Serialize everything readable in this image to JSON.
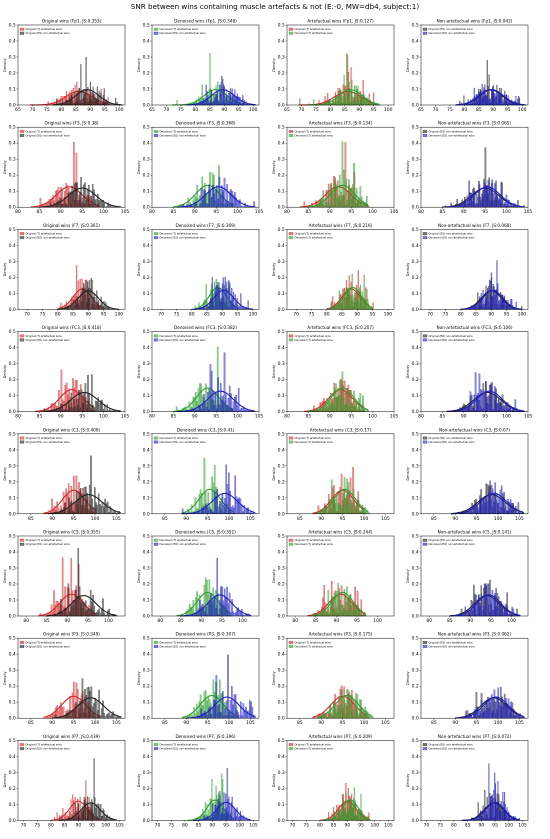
{
  "title": "SNR between wins containing muscle artefacts & not (E:-0, MW=db4, subject:1)",
  "colors": {
    "red": "#d62728",
    "black": "#222222",
    "green": "#2ca02c",
    "blue": "#1f1fbf"
  },
  "chart_data": {
    "type": "histogram-grid",
    "ylabel": "Density",
    "columns": [
      {
        "kind": "original",
        "legend": [
          "Original (T) artefactual wins",
          "Original (EO) non-artefactual wins"
        ],
        "colors": [
          "red",
          "black"
        ]
      },
      {
        "kind": "denoised",
        "legend": [
          "Denoised (T) artefactual wins",
          "Denoised (EO) non-artefactual wins"
        ],
        "colors": [
          "green",
          "blue"
        ]
      },
      {
        "kind": "artefactual",
        "legend": [
          "Original (T) artefactual wins",
          "Denoised (T) artefactual wins"
        ],
        "colors": [
          "red",
          "green"
        ]
      },
      {
        "kind": "nonartefactual",
        "legend": [
          "Original (EO) non-artefactual wins",
          "Denoised (EO) non-artefactual wins"
        ],
        "colors": [
          "black",
          "blue"
        ]
      }
    ],
    "rows": [
      {
        "channel": "Fp1",
        "xlim": [
          65,
          102
        ],
        "xticks": [
          65,
          70,
          75,
          80,
          85,
          90,
          95,
          100
        ],
        "ylim": [
          0,
          0.5
        ],
        "yticks": [
          0.0,
          0.1,
          0.2,
          0.3,
          0.4,
          0.5
        ],
        "titles": [
          "Original wins (Fp1, JS:0.353)",
          "Denoised wins (Fp1, JS:0.348)",
          "Artefactual wins (Fp1, JS:0.127)",
          "Non-artefactual wins (Fp1, JS:0.042)"
        ],
        "dists": {
          "T_orig": {
            "mu": 86,
            "sd": 4.5,
            "min": 69,
            "max": 96
          },
          "T_den": {
            "mu": 87,
            "sd": 4.0,
            "min": 72,
            "max": 97
          },
          "EO_orig": {
            "mu": 89,
            "sd": 4.0,
            "min": 77,
            "max": 101
          },
          "EO_den": {
            "mu": 89.5,
            "sd": 4.0,
            "min": 77,
            "max": 101
          }
        }
      },
      {
        "channel": "F3",
        "xlim": [
          80,
          105
        ],
        "xticks": [
          80,
          85,
          90,
          95,
          100,
          105
        ],
        "ylim": [
          0,
          0.5
        ],
        "yticks": [
          0.0,
          0.1,
          0.2,
          0.3,
          0.4,
          0.5
        ],
        "titles": [
          "Original wins (F3, JS:0.38)",
          "Denoised wins (F3, JS:0.368)",
          "Artefactual wins (F3, JS:0.134)",
          "Non-artefactual wins (F3, JS:0.065)"
        ],
        "dists": {
          "T_orig": {
            "mu": 92,
            "sd": 3.0,
            "min": 83,
            "max": 99
          },
          "T_den": {
            "mu": 93,
            "sd": 2.8,
            "min": 85,
            "max": 99
          },
          "EO_orig": {
            "mu": 95,
            "sd": 3.2,
            "min": 85,
            "max": 104
          },
          "EO_den": {
            "mu": 95.5,
            "sd": 3.0,
            "min": 86,
            "max": 104
          }
        }
      },
      {
        "channel": "F7",
        "xlim": [
          67,
          102
        ],
        "xticks": [
          70,
          75,
          80,
          85,
          90,
          95,
          100
        ],
        "ylim": [
          0,
          0.5
        ],
        "yticks": [
          0.0,
          0.1,
          0.2,
          0.3,
          0.4,
          0.5
        ],
        "titles": [
          "Original wins (F7, JS:0.361)",
          "Denoised wins (F7, JS:0.369)",
          "Artefactual wins (F7, JS:0.216)",
          "Non-artefactual wins (F7, JS:0.068)"
        ],
        "dists": {
          "T_orig": {
            "mu": 88,
            "sd": 3.0,
            "min": 80,
            "max": 95
          },
          "T_den": {
            "mu": 88.5,
            "sd": 2.8,
            "min": 81,
            "max": 95
          },
          "EO_orig": {
            "mu": 90,
            "sd": 3.3,
            "min": 80,
            "max": 100
          },
          "EO_den": {
            "mu": 90.5,
            "sd": 3.2,
            "min": 80,
            "max": 100
          }
        }
      },
      {
        "channel": "FC3",
        "xlim": [
          80,
          105
        ],
        "xticks": [
          80,
          85,
          90,
          95,
          100,
          105
        ],
        "ylim": [
          0,
          0.5
        ],
        "yticks": [
          0.0,
          0.1,
          0.2,
          0.3,
          0.4,
          0.5
        ],
        "titles": [
          "Original wins (FC3, JS:0.418)",
          "Denoised wins (FC3, JS:0.382)",
          "Artefactual wins (FC3, JS:0.207)",
          "Non-artefactual wins (FC3, JS:0.106)"
        ],
        "dists": {
          "T_orig": {
            "mu": 92.5,
            "sd": 2.8,
            "min": 84,
            "max": 98
          },
          "T_den": {
            "mu": 93,
            "sd": 2.6,
            "min": 85,
            "max": 99
          },
          "EO_orig": {
            "mu": 95.5,
            "sd": 3.2,
            "min": 86,
            "max": 104
          },
          "EO_den": {
            "mu": 96,
            "sd": 3.0,
            "min": 86,
            "max": 104
          }
        }
      },
      {
        "channel": "C3",
        "xlim": [
          82,
          107
        ],
        "xticks": [
          85,
          90,
          95,
          100,
          105
        ],
        "ylim": [
          0,
          0.5
        ],
        "yticks": [
          0.0,
          0.1,
          0.2,
          0.3,
          0.4,
          0.5
        ],
        "titles": [
          "Original wins (C3, JS:0.406)",
          "Denoised wins (C3, JS:0.41)",
          "Artefactual wins (C3, JS:0.17)",
          "Non-artefactual wins (C3, JS:0.07)"
        ],
        "dists": {
          "T_orig": {
            "mu": 95,
            "sd": 2.6,
            "min": 88,
            "max": 100
          },
          "T_den": {
            "mu": 95.5,
            "sd": 2.5,
            "min": 89,
            "max": 101
          },
          "EO_orig": {
            "mu": 98.5,
            "sd": 3.2,
            "min": 89,
            "max": 106
          },
          "EO_den": {
            "mu": 99,
            "sd": 3.0,
            "min": 89,
            "max": 106
          }
        }
      },
      {
        "channel": "C5",
        "xlim": [
          78,
          104
        ],
        "xticks": [
          80,
          85,
          90,
          95,
          100
        ],
        "ylim": [
          0,
          0.5
        ],
        "yticks": [
          0.0,
          0.1,
          0.2,
          0.3,
          0.4,
          0.5
        ],
        "titles": [
          "Original wins (C5, JS:0.355)",
          "Denoised wins (C5, JS:0.352)",
          "Artefactual wins (C5, JS:0.244)",
          "Non-artefactual wins (C5, JS:0.141)"
        ],
        "dists": {
          "T_orig": {
            "mu": 91,
            "sd": 2.8,
            "min": 83,
            "max": 97
          },
          "T_den": {
            "mu": 91.5,
            "sd": 2.6,
            "min": 84,
            "max": 97
          },
          "EO_orig": {
            "mu": 94,
            "sd": 3.0,
            "min": 85,
            "max": 102
          },
          "EO_den": {
            "mu": 94.5,
            "sd": 2.9,
            "min": 85,
            "max": 102
          }
        }
      },
      {
        "channel": "P3",
        "xlim": [
          82,
          107
        ],
        "xticks": [
          85,
          90,
          95,
          100,
          105
        ],
        "ylim": [
          0,
          0.5
        ],
        "yticks": [
          0.0,
          0.1,
          0.2,
          0.3,
          0.4,
          0.5
        ],
        "titles": [
          "Original wins (P3, JS:0.349)",
          "Denoised wins (P3, JS:0.307)",
          "Artefactual wins (P3, JS:0.175)",
          "Non-artefactual wins (P3, JS:0.062)"
        ],
        "dists": {
          "T_orig": {
            "mu": 95,
            "sd": 2.8,
            "min": 88,
            "max": 101
          },
          "T_den": {
            "mu": 96,
            "sd": 2.7,
            "min": 89,
            "max": 102
          },
          "EO_orig": {
            "mu": 99,
            "sd": 3.0,
            "min": 90,
            "max": 106
          },
          "EO_den": {
            "mu": 99.5,
            "sd": 2.9,
            "min": 90,
            "max": 106
          }
        }
      },
      {
        "channel": "P7",
        "xlim": [
          68,
          107
        ],
        "xticks": [
          70,
          75,
          80,
          85,
          90,
          95,
          100,
          105
        ],
        "ylim": [
          0,
          0.5
        ],
        "yticks": [
          0.0,
          0.1,
          0.2,
          0.3,
          0.4,
          0.5
        ],
        "titles": [
          "Original wins (P7, JS:0.439)",
          "Denoised wins (P7, JS:0.396)",
          "Artefactual wins (P7, JS:0.209)",
          "Non-artefactual wins (P7, JS:0.072)"
        ],
        "dists": {
          "T_orig": {
            "mu": 90,
            "sd": 3.2,
            "min": 80,
            "max": 98
          },
          "T_den": {
            "mu": 91,
            "sd": 3.0,
            "min": 81,
            "max": 98
          },
          "EO_orig": {
            "mu": 94.5,
            "sd": 3.5,
            "min": 83,
            "max": 104
          },
          "EO_den": {
            "mu": 95,
            "sd": 3.4,
            "min": 83,
            "max": 104
          }
        }
      }
    ]
  }
}
